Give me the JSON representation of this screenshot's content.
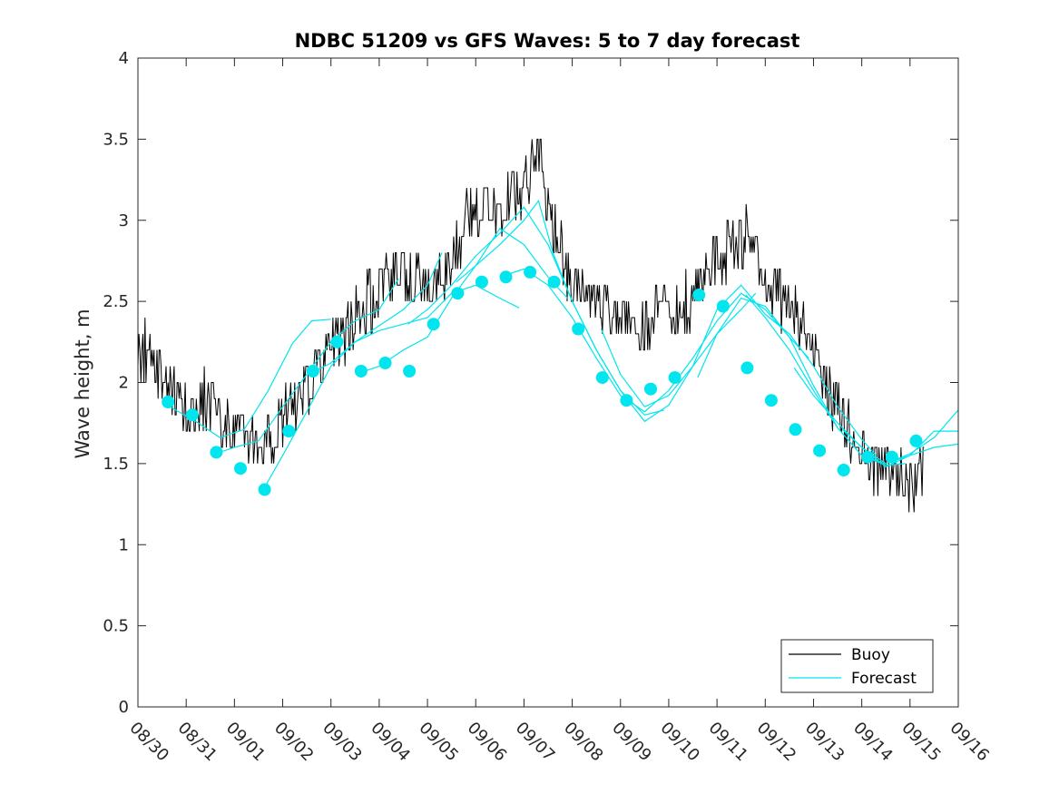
{
  "chart_data": {
    "type": "line",
    "title": "NDBC 51209 vs GFS Waves: 5 to 7 day forecast",
    "xlabel": "",
    "ylabel": "Wave height, m",
    "xlim": [
      0,
      17
    ],
    "ylim": [
      0,
      4
    ],
    "yticks": [
      0,
      0.5,
      1,
      1.5,
      2,
      2.5,
      3,
      3.5,
      4
    ],
    "ytick_labels": [
      "0",
      "0.5",
      "1",
      "1.5",
      "2",
      "2.5",
      "3",
      "3.5",
      "4"
    ],
    "xtick_labels": [
      "08/30",
      "08/31",
      "09/01",
      "09/02",
      "09/03",
      "09/04",
      "09/05",
      "09/06",
      "09/07",
      "09/08",
      "09/09",
      "09/10",
      "09/11",
      "09/12",
      "09/13",
      "09/14",
      "09/15",
      "09/16"
    ],
    "x_unit": "days since 08/30 00:00",
    "grid": false,
    "legend_position": "bottom-right",
    "legend": [
      "Buoy",
      "Forecast"
    ],
    "colors": {
      "buoy": "#000000",
      "forecast": "#00e5ee",
      "axis": "#262626"
    },
    "buoy_anchor_points": [
      [
        0,
        2.1
      ],
      [
        0.1,
        2.2
      ],
      [
        0.5,
        2.0
      ],
      [
        0.8,
        1.95
      ],
      [
        1.0,
        1.8
      ],
      [
        1.5,
        1.9
      ],
      [
        1.9,
        1.7
      ],
      [
        2.3,
        1.65
      ],
      [
        2.6,
        1.6
      ],
      [
        3.0,
        1.8
      ],
      [
        3.5,
        2.0
      ],
      [
        4.0,
        2.2
      ],
      [
        4.5,
        2.4
      ],
      [
        5.0,
        2.55
      ],
      [
        5.4,
        2.7
      ],
      [
        5.8,
        2.6
      ],
      [
        6.2,
        2.6
      ],
      [
        6.5,
        2.75
      ],
      [
        6.9,
        3.1
      ],
      [
        7.3,
        3.05
      ],
      [
        7.7,
        3.15
      ],
      [
        8.0,
        3.2
      ],
      [
        8.3,
        3.4
      ],
      [
        8.6,
        3.0
      ],
      [
        9.0,
        2.6
      ],
      [
        9.4,
        2.5
      ],
      [
        9.8,
        2.45
      ],
      [
        10.2,
        2.4
      ],
      [
        10.5,
        2.35
      ],
      [
        10.8,
        2.5
      ],
      [
        11.2,
        2.45
      ],
      [
        11.6,
        2.55
      ],
      [
        12.0,
        2.75
      ],
      [
        12.3,
        2.85
      ],
      [
        12.7,
        2.9
      ],
      [
        13.0,
        2.6
      ],
      [
        13.4,
        2.5
      ],
      [
        13.8,
        2.3
      ],
      [
        14.2,
        2.0
      ],
      [
        14.6,
        1.75
      ],
      [
        15.0,
        1.55
      ],
      [
        15.4,
        1.5
      ],
      [
        15.8,
        1.45
      ],
      [
        16.1,
        1.4
      ],
      [
        16.3,
        1.4
      ]
    ],
    "forecast_points": {
      "x": [
        0.625,
        1.125,
        1.625,
        2.125,
        2.625,
        3.125,
        3.625,
        4.125,
        4.625,
        5.125,
        5.625,
        6.125,
        6.625,
        7.125,
        7.625,
        8.125,
        8.625,
        9.125,
        9.625,
        10.125,
        10.625,
        11.125,
        11.625,
        12.125,
        12.625,
        13.125,
        13.625,
        14.125,
        14.625,
        15.125,
        15.625,
        16.125,
        16.625
      ],
      "y": [
        1.88,
        1.8,
        1.57,
        1.47,
        1.34,
        1.7,
        2.07,
        2.25,
        2.07,
        2.12,
        2.07,
        2.36,
        2.55,
        2.62,
        2.65,
        2.68,
        2.62,
        2.33,
        2.03,
        1.89,
        1.96,
        2.03,
        2.54,
        2.47,
        2.09,
        1.89,
        1.71,
        1.58,
        1.46,
        1.54,
        1.54,
        1.64,
        null
      ]
    },
    "forecast_lines": [
      [
        [
          0.6,
          1.86
        ],
        [
          1.2,
          1.76
        ],
        [
          1.7,
          1.66
        ],
        [
          2.2,
          1.71
        ],
        [
          2.7,
          1.95
        ],
        [
          3.2,
          2.24
        ],
        [
          3.6,
          2.38
        ],
        [
          4.0,
          2.39
        ]
      ],
      [
        [
          1.6,
          1.56
        ],
        [
          2.0,
          1.6
        ],
        [
          2.5,
          1.64
        ],
        [
          3.0,
          1.85
        ],
        [
          3.5,
          2.05
        ],
        [
          4.0,
          2.25
        ],
        [
          4.5,
          2.38
        ],
        [
          5.0,
          2.45
        ],
        [
          5.4,
          2.64
        ]
      ],
      [
        [
          2.6,
          1.34
        ],
        [
          3.0,
          1.55
        ],
        [
          3.5,
          1.82
        ],
        [
          4.0,
          2.1
        ],
        [
          4.5,
          2.25
        ],
        [
          5.0,
          2.35
        ],
        [
          5.5,
          2.45
        ],
        [
          6.0,
          2.6
        ],
        [
          6.3,
          2.8
        ]
      ],
      [
        [
          3.6,
          2.06
        ],
        [
          4.0,
          2.12
        ],
        [
          4.5,
          2.25
        ],
        [
          5.0,
          2.32
        ],
        [
          5.5,
          2.36
        ],
        [
          6.0,
          2.4
        ],
        [
          6.5,
          2.55
        ],
        [
          7.0,
          2.6
        ],
        [
          7.5,
          2.52
        ],
        [
          7.9,
          2.46
        ]
      ],
      [
        [
          4.6,
          2.06
        ],
        [
          5.0,
          2.1
        ],
        [
          5.5,
          2.2
        ],
        [
          6.0,
          2.28
        ],
        [
          6.5,
          2.52
        ],
        [
          7.0,
          2.72
        ],
        [
          7.5,
          2.95
        ],
        [
          8.0,
          2.85
        ],
        [
          8.5,
          2.65
        ],
        [
          8.9,
          2.52
        ]
      ],
      [
        [
          5.6,
          2.36
        ],
        [
          6.0,
          2.45
        ],
        [
          6.5,
          2.6
        ],
        [
          7.0,
          2.78
        ],
        [
          7.5,
          2.92
        ],
        [
          8.0,
          3.08
        ],
        [
          8.5,
          2.85
        ],
        [
          9.0,
          2.5
        ],
        [
          9.5,
          2.2
        ],
        [
          10.0,
          1.95
        ],
        [
          10.5,
          1.8
        ],
        [
          10.9,
          1.83
        ]
      ],
      [
        [
          6.6,
          2.62
        ],
        [
          7.0,
          2.72
        ],
        [
          7.5,
          2.85
        ],
        [
          8.0,
          3.0
        ],
        [
          8.3,
          3.12
        ],
        [
          8.6,
          2.8
        ],
        [
          9.0,
          2.5
        ],
        [
          9.5,
          2.2
        ],
        [
          10.0,
          1.95
        ],
        [
          10.5,
          1.76
        ],
        [
          11.0,
          1.86
        ],
        [
          11.5,
          2.1
        ],
        [
          12.0,
          2.3
        ],
        [
          12.5,
          2.45
        ],
        [
          12.8,
          2.55
        ]
      ],
      [
        [
          7.6,
          2.66
        ],
        [
          8.0,
          2.7
        ],
        [
          8.5,
          2.6
        ],
        [
          9.0,
          2.4
        ],
        [
          9.5,
          2.15
        ],
        [
          10.0,
          1.92
        ],
        [
          10.5,
          1.82
        ],
        [
          11.0,
          1.95
        ],
        [
          11.5,
          2.15
        ],
        [
          12.0,
          2.38
        ],
        [
          12.5,
          2.55
        ],
        [
          13.0,
          2.45
        ],
        [
          13.5,
          2.28
        ],
        [
          13.9,
          2.15
        ]
      ],
      [
        [
          9.6,
          2.33
        ],
        [
          10.0,
          2.05
        ],
        [
          10.5,
          1.85
        ],
        [
          11.0,
          1.92
        ],
        [
          11.5,
          2.1
        ],
        [
          12.0,
          2.45
        ],
        [
          12.5,
          2.6
        ],
        [
          13.0,
          2.42
        ],
        [
          13.5,
          2.3
        ],
        [
          14.0,
          2.1
        ],
        [
          14.5,
          1.85
        ],
        [
          15.0,
          1.65
        ],
        [
          15.3,
          1.55
        ]
      ],
      [
        [
          11.6,
          2.03
        ],
        [
          12.0,
          2.3
        ],
        [
          12.5,
          2.52
        ],
        [
          13.0,
          2.47
        ],
        [
          13.5,
          2.28
        ],
        [
          14.0,
          1.98
        ],
        [
          14.5,
          1.72
        ],
        [
          15.0,
          1.55
        ],
        [
          15.5,
          1.49
        ],
        [
          15.9,
          1.5
        ]
      ],
      [
        [
          12.6,
          2.54
        ],
        [
          13.0,
          2.4
        ],
        [
          13.5,
          2.2
        ],
        [
          14.0,
          1.95
        ],
        [
          14.5,
          1.72
        ],
        [
          15.0,
          1.55
        ],
        [
          15.5,
          1.5
        ],
        [
          16.0,
          1.55
        ],
        [
          16.5,
          1.6
        ],
        [
          17.0,
          1.62
        ]
      ],
      [
        [
          13.6,
          2.09
        ],
        [
          14.0,
          1.92
        ],
        [
          14.5,
          1.75
        ],
        [
          15.0,
          1.6
        ],
        [
          15.5,
          1.5
        ],
        [
          16.0,
          1.56
        ],
        [
          16.5,
          1.66
        ],
        [
          17.0,
          1.83
        ]
      ],
      [
        [
          14.6,
          1.71
        ],
        [
          15.0,
          1.6
        ],
        [
          15.5,
          1.48
        ],
        [
          16.0,
          1.55
        ],
        [
          16.5,
          1.7
        ],
        [
          17.0,
          1.7
        ]
      ]
    ]
  }
}
